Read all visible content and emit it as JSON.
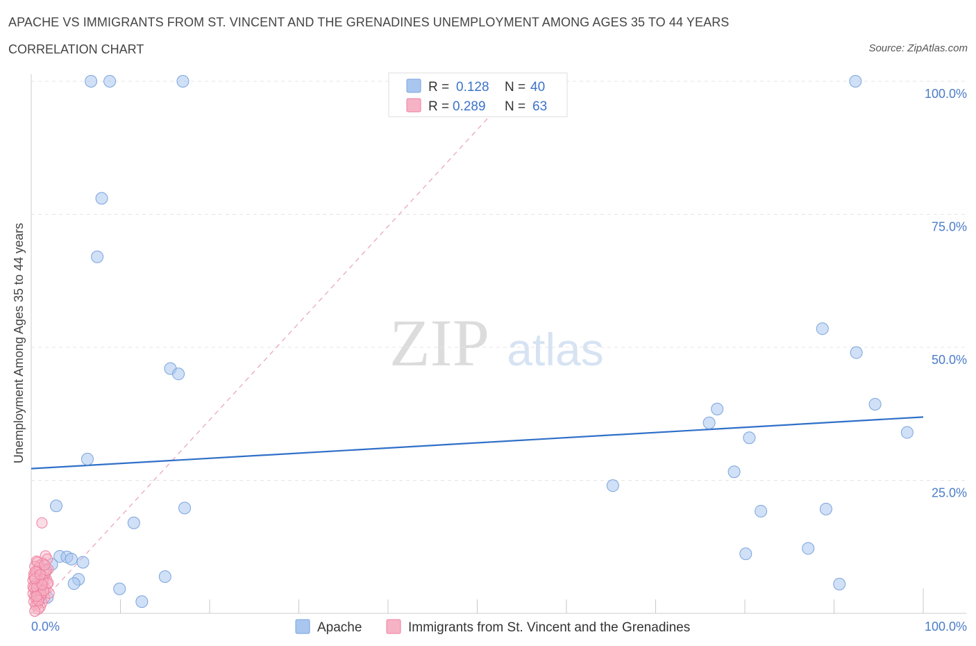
{
  "header": {
    "title": "APACHE VS IMMIGRANTS FROM ST. VINCENT AND THE GRENADINES UNEMPLOYMENT AMONG AGES 35 TO 44 YEARS",
    "subtitle": "CORRELATION CHART",
    "source": "Source: ZipAtlas.com"
  },
  "watermark": {
    "zip": "ZIP",
    "atlas": "atlas"
  },
  "colors": {
    "apache_fill": "#a9c6ef",
    "apache_stroke": "#7aa3dd",
    "apache_line": "#2f6fc8",
    "svg_fill": "#f6b3c6",
    "svg_stroke": "#ee7f9f",
    "svg_line": "#e8a0b4",
    "tick_label": "#4a7cc9"
  },
  "legend_top": {
    "rows": [
      {
        "r_label": "R = ",
        "r_value": "0.128",
        "n_label": "N = ",
        "n_value": "40"
      },
      {
        "r_label": "R = ",
        "r_value": "0.289",
        "n_label": "N = ",
        "n_value": "63"
      }
    ]
  },
  "chart_data": {
    "type": "scatter",
    "title": "APACHE VS IMMIGRANTS FROM ST. VINCENT AND THE GRENADINES UNEMPLOYMENT AMONG AGES 35 TO 44 YEARS",
    "xlabel": "",
    "ylabel": "Unemployment Among Ages 35 to 44 years",
    "xlim": [
      0,
      100
    ],
    "ylim": [
      0,
      100
    ],
    "x_tick_labels": [
      "0.0%",
      "100.0%"
    ],
    "y_ticks": [
      25,
      50,
      75,
      100
    ],
    "y_tick_labels": [
      "25.0%",
      "50.0%",
      "75.0%",
      "100.0%"
    ],
    "grid": true,
    "legend_placement": "bottom-center",
    "series": [
      {
        "name": "Apache",
        "r": 0.128,
        "n": 40,
        "trend": {
          "x": [
            0,
            100
          ],
          "y": [
            27.2,
            36.9
          ]
        },
        "points": [
          {
            "x": 6.7,
            "y": 100
          },
          {
            "x": 8.8,
            "y": 100
          },
          {
            "x": 17.0,
            "y": 100
          },
          {
            "x": 92.4,
            "y": 100
          },
          {
            "x": 7.9,
            "y": 78.0
          },
          {
            "x": 7.4,
            "y": 67.0
          },
          {
            "x": 15.6,
            "y": 46.0
          },
          {
            "x": 16.5,
            "y": 45.0
          },
          {
            "x": 88.7,
            "y": 53.5
          },
          {
            "x": 92.5,
            "y": 49.0
          },
          {
            "x": 94.6,
            "y": 39.3
          },
          {
            "x": 98.2,
            "y": 34.0
          },
          {
            "x": 76.9,
            "y": 38.4
          },
          {
            "x": 76.0,
            "y": 35.8
          },
          {
            "x": 80.5,
            "y": 33.0
          },
          {
            "x": 78.8,
            "y": 26.6
          },
          {
            "x": 65.2,
            "y": 24.0
          },
          {
            "x": 6.3,
            "y": 29.0
          },
          {
            "x": 2.8,
            "y": 20.2
          },
          {
            "x": 17.2,
            "y": 19.8
          },
          {
            "x": 11.5,
            "y": 17.0
          },
          {
            "x": 81.8,
            "y": 19.2
          },
          {
            "x": 89.1,
            "y": 19.6
          },
          {
            "x": 80.1,
            "y": 11.2
          },
          {
            "x": 87.1,
            "y": 12.2
          },
          {
            "x": 90.6,
            "y": 5.5
          },
          {
            "x": 3.2,
            "y": 10.7
          },
          {
            "x": 4.0,
            "y": 10.6
          },
          {
            "x": 4.5,
            "y": 10.2
          },
          {
            "x": 5.8,
            "y": 9.6
          },
          {
            "x": 2.3,
            "y": 9.2
          },
          {
            "x": 1.5,
            "y": 7.8
          },
          {
            "x": 5.3,
            "y": 6.4
          },
          {
            "x": 4.8,
            "y": 5.6
          },
          {
            "x": 15.0,
            "y": 6.9
          },
          {
            "x": 9.9,
            "y": 4.6
          },
          {
            "x": 12.4,
            "y": 2.2
          },
          {
            "x": 1.0,
            "y": 5.0
          },
          {
            "x": 1.8,
            "y": 3.0
          },
          {
            "x": 0.6,
            "y": 6.2
          }
        ]
      },
      {
        "name": "Immigrants from St. Vincent and the Grenadines",
        "r": 0.289,
        "n": 63,
        "trend": {
          "x": [
            0,
            55
          ],
          "y": [
            0,
            100
          ]
        },
        "points": [
          {
            "x": 1.2,
            "y": 17.0
          },
          {
            "x": 1.6,
            "y": 10.8
          },
          {
            "x": 1.8,
            "y": 10.2
          },
          {
            "x": 0.6,
            "y": 9.8
          },
          {
            "x": 1.3,
            "y": 9.4
          },
          {
            "x": 0.9,
            "y": 9.0
          },
          {
            "x": 0.4,
            "y": 8.8
          },
          {
            "x": 1.9,
            "y": 8.3
          },
          {
            "x": 0.7,
            "y": 8.0
          },
          {
            "x": 1.4,
            "y": 7.7
          },
          {
            "x": 0.3,
            "y": 7.4
          },
          {
            "x": 1.1,
            "y": 7.2
          },
          {
            "x": 0.8,
            "y": 7.0
          },
          {
            "x": 1.5,
            "y": 6.8
          },
          {
            "x": 0.5,
            "y": 6.6
          },
          {
            "x": 1.7,
            "y": 6.4
          },
          {
            "x": 0.2,
            "y": 6.2
          },
          {
            "x": 1.0,
            "y": 6.0
          },
          {
            "x": 1.3,
            "y": 5.8
          },
          {
            "x": 0.6,
            "y": 5.6
          },
          {
            "x": 1.8,
            "y": 5.5
          },
          {
            "x": 0.4,
            "y": 5.3
          },
          {
            "x": 0.9,
            "y": 5.1
          },
          {
            "x": 1.2,
            "y": 4.9
          },
          {
            "x": 0.3,
            "y": 4.7
          },
          {
            "x": 1.6,
            "y": 4.6
          },
          {
            "x": 0.7,
            "y": 4.4
          },
          {
            "x": 1.0,
            "y": 4.2
          },
          {
            "x": 0.5,
            "y": 4.0
          },
          {
            "x": 1.4,
            "y": 3.9
          },
          {
            "x": 0.2,
            "y": 3.7
          },
          {
            "x": 0.8,
            "y": 3.5
          },
          {
            "x": 1.1,
            "y": 3.3
          },
          {
            "x": 0.4,
            "y": 3.1
          },
          {
            "x": 1.5,
            "y": 2.9
          },
          {
            "x": 0.6,
            "y": 2.7
          },
          {
            "x": 0.9,
            "y": 2.5
          },
          {
            "x": 0.3,
            "y": 2.2
          },
          {
            "x": 1.2,
            "y": 2.0
          },
          {
            "x": 0.7,
            "y": 1.8
          },
          {
            "x": 0.5,
            "y": 1.5
          },
          {
            "x": 1.0,
            "y": 1.2
          },
          {
            "x": 0.8,
            "y": 0.8
          },
          {
            "x": 0.4,
            "y": 0.4
          },
          {
            "x": 2.0,
            "y": 3.8
          },
          {
            "x": 0.2,
            "y": 5.0
          },
          {
            "x": 1.6,
            "y": 7.6
          },
          {
            "x": 0.9,
            "y": 8.6
          },
          {
            "x": 1.3,
            "y": 6.3
          },
          {
            "x": 0.6,
            "y": 4.9
          },
          {
            "x": 1.9,
            "y": 5.7
          },
          {
            "x": 0.3,
            "y": 6.9
          },
          {
            "x": 1.1,
            "y": 3.6
          },
          {
            "x": 0.7,
            "y": 9.6
          },
          {
            "x": 1.4,
            "y": 4.3
          },
          {
            "x": 0.5,
            "y": 7.9
          },
          {
            "x": 1.7,
            "y": 8.1
          },
          {
            "x": 0.8,
            "y": 2.4
          },
          {
            "x": 1.2,
            "y": 5.4
          },
          {
            "x": 0.4,
            "y": 6.5
          },
          {
            "x": 1.0,
            "y": 7.3
          },
          {
            "x": 0.6,
            "y": 3.2
          },
          {
            "x": 1.5,
            "y": 9.1
          }
        ]
      }
    ]
  }
}
